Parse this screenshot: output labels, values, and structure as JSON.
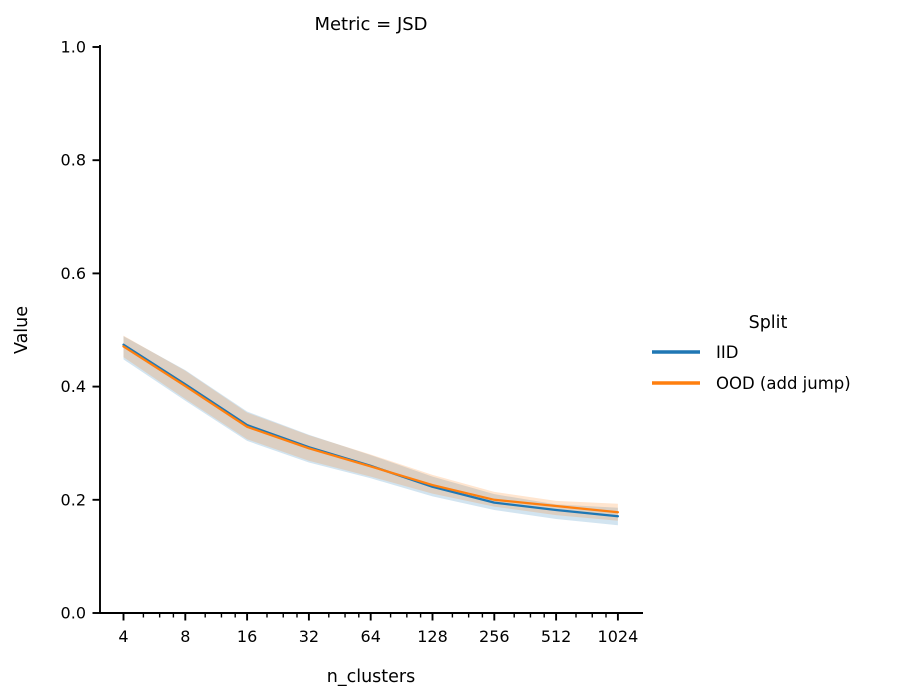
{
  "chart_data": {
    "type": "line",
    "title": "Metric = JSD",
    "xlabel": "n_clusters",
    "ylabel": "Value",
    "x_scale": "log2",
    "grid": false,
    "x": [
      4,
      8,
      16,
      32,
      64,
      128,
      256,
      512,
      1024
    ],
    "x_tick_labels": [
      "4",
      "8",
      "16",
      "32",
      "64",
      "128",
      "256",
      "512",
      "1024"
    ],
    "x_minor_ticks": [
      5,
      6,
      7,
      10,
      12,
      14,
      20,
      24,
      28,
      40,
      48,
      56,
      80,
      96,
      112,
      160,
      192,
      224,
      320,
      384,
      448,
      640,
      768,
      896
    ],
    "y_ticks": [
      0.0,
      0.2,
      0.4,
      0.6,
      0.8,
      1.0
    ],
    "ylim": [
      0.0,
      1.0
    ],
    "band_alpha": 0.2,
    "legend": {
      "title": "Split",
      "position": "right"
    },
    "series": [
      {
        "name": "IID",
        "color": "#1f77b4",
        "values": [
          0.474,
          0.404,
          0.332,
          0.293,
          0.26,
          0.223,
          0.195,
          0.182,
          0.171
        ],
        "band_lower": [
          0.448,
          0.375,
          0.304,
          0.266,
          0.238,
          0.206,
          0.182,
          0.166,
          0.155
        ],
        "band_upper": [
          0.489,
          0.429,
          0.356,
          0.315,
          0.279,
          0.241,
          0.21,
          0.192,
          0.186
        ]
      },
      {
        "name": "OOD (add jump)",
        "color": "#ff7f0e",
        "values": [
          0.471,
          0.401,
          0.329,
          0.291,
          0.259,
          0.226,
          0.2,
          0.189,
          0.178
        ],
        "band_lower": [
          0.452,
          0.378,
          0.307,
          0.269,
          0.241,
          0.211,
          0.188,
          0.173,
          0.163
        ],
        "band_upper": [
          0.49,
          0.428,
          0.354,
          0.314,
          0.28,
          0.244,
          0.214,
          0.198,
          0.193
        ]
      }
    ]
  }
}
